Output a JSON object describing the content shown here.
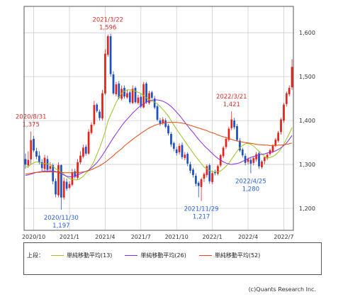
{
  "chart_data": {
    "type": "candlestick",
    "ylim": [
      1150,
      1660
    ],
    "y_ticks": [
      1200,
      1300,
      1400,
      1500,
      1600
    ],
    "y_tick_labels": [
      "1,200",
      "1,300",
      "1,400",
      "1,500",
      "1,600"
    ],
    "x_ticks": [
      {
        "label": "2020/10",
        "week": 3
      },
      {
        "label": "2021/1",
        "week": 16
      },
      {
        "label": "2021/4",
        "week": 29
      },
      {
        "label": "2021/7",
        "week": 42
      },
      {
        "label": "2021/10",
        "week": 55
      },
      {
        "label": "2022/1",
        "week": 68
      },
      {
        "label": "2022/4",
        "week": 81
      },
      {
        "label": "2022/7",
        "week": 94
      }
    ],
    "candles_close": [
      1300,
      1310,
      1355,
      1332,
      1318,
      1305,
      1292,
      1315,
      1288,
      1296,
      1262,
      1232,
      1298,
      1225,
      1262,
      1245,
      1255,
      1282,
      1272,
      1305,
      1320,
      1338,
      1325,
      1374,
      1390,
      1435,
      1422,
      1406,
      1462,
      1552,
      1592,
      1506,
      1462,
      1482,
      1452,
      1472,
      1455,
      1462,
      1442,
      1472,
      1442,
      1452,
      1432,
      1482,
      1442,
      1462,
      1452,
      1430,
      1402,
      1392,
      1402,
      1386,
      1371,
      1346,
      1336,
      1326,
      1342,
      1317,
      1322,
      1302,
      1286,
      1276,
      1256,
      1251,
      1266,
      1278,
      1296,
      1262,
      1280,
      1281,
      1296,
      1321,
      1338,
      1358,
      1381,
      1402,
      1385,
      1356,
      1332,
      1321,
      1304,
      1312,
      1302,
      1314,
      1323,
      1296,
      1306,
      1316,
      1322,
      1332,
      1342,
      1356,
      1372,
      1402,
      1436,
      1462,
      1474,
      1522
    ],
    "candles_open": [
      1312,
      1298,
      1312,
      1358,
      1330,
      1320,
      1305,
      1290,
      1312,
      1290,
      1298,
      1262,
      1230,
      1298,
      1225,
      1260,
      1247,
      1254,
      1284,
      1270,
      1305,
      1318,
      1340,
      1325,
      1372,
      1392,
      1436,
      1420,
      1405,
      1462,
      1550,
      1592,
      1505,
      1460,
      1484,
      1450,
      1474,
      1453,
      1464,
      1440,
      1474,
      1440,
      1454,
      1430,
      1484,
      1440,
      1464,
      1450,
      1432,
      1400,
      1394,
      1400,
      1388,
      1369,
      1348,
      1334,
      1328,
      1344,
      1315,
      1324,
      1300,
      1288,
      1274,
      1258,
      1249,
      1268,
      1276,
      1298,
      1260,
      1282,
      1279,
      1298,
      1319,
      1340,
      1356,
      1383,
      1400,
      1387,
      1354,
      1334,
      1319,
      1306,
      1310,
      1304,
      1312,
      1325,
      1294,
      1308,
      1314,
      1324,
      1330,
      1344,
      1354,
      1374,
      1400,
      1438,
      1460,
      1476
    ],
    "candles_high": [
      1325,
      1330,
      1375,
      1365,
      1338,
      1330,
      1312,
      1322,
      1320,
      1305,
      1302,
      1268,
      1305,
      1300,
      1270,
      1268,
      1262,
      1290,
      1290,
      1312,
      1330,
      1345,
      1345,
      1380,
      1396,
      1445,
      1440,
      1425,
      1470,
      1562,
      1596,
      1598,
      1512,
      1488,
      1490,
      1480,
      1480,
      1470,
      1468,
      1480,
      1478,
      1458,
      1460,
      1488,
      1488,
      1468,
      1468,
      1456,
      1436,
      1406,
      1408,
      1405,
      1392,
      1374,
      1352,
      1340,
      1348,
      1350,
      1328,
      1328,
      1306,
      1292,
      1280,
      1262,
      1270,
      1282,
      1300,
      1302,
      1286,
      1288,
      1300,
      1324,
      1342,
      1363,
      1386,
      1421,
      1406,
      1392,
      1360,
      1338,
      1325,
      1316,
      1315,
      1318,
      1328,
      1330,
      1310,
      1318,
      1326,
      1336,
      1346,
      1360,
      1376,
      1406,
      1440,
      1466,
      1480,
      1540
    ],
    "candles_low": [
      1290,
      1292,
      1300,
      1328,
      1312,
      1300,
      1285,
      1285,
      1282,
      1285,
      1255,
      1225,
      1225,
      1197,
      1220,
      1240,
      1243,
      1250,
      1268,
      1265,
      1300,
      1314,
      1320,
      1322,
      1368,
      1388,
      1418,
      1400,
      1400,
      1458,
      1545,
      1500,
      1458,
      1455,
      1448,
      1446,
      1450,
      1450,
      1438,
      1438,
      1438,
      1436,
      1428,
      1428,
      1438,
      1436,
      1448,
      1426,
      1398,
      1388,
      1390,
      1382,
      1366,
      1340,
      1330,
      1320,
      1322,
      1312,
      1310,
      1296,
      1280,
      1270,
      1250,
      1225,
      1217,
      1260,
      1270,
      1256,
      1255,
      1275,
      1275,
      1294,
      1315,
      1335,
      1352,
      1378,
      1380,
      1352,
      1328,
      1316,
      1298,
      1300,
      1280,
      1298,
      1306,
      1290,
      1290,
      1300,
      1310,
      1320,
      1326,
      1340,
      1350,
      1368,
      1395,
      1432,
      1455,
      1470
    ],
    "sma13": [
      1295,
      1295,
      1300,
      1304,
      1306,
      1305,
      1302,
      1302,
      1301,
      1300,
      1296,
      1290,
      1287,
      1282,
      1278,
      1272,
      1268,
      1266,
      1265,
      1265,
      1268,
      1273,
      1280,
      1286,
      1296,
      1308,
      1323,
      1338,
      1355,
      1375,
      1398,
      1413,
      1427,
      1441,
      1453,
      1462,
      1467,
      1470,
      1470,
      1469,
      1467,
      1464,
      1462,
      1457,
      1452,
      1448,
      1444,
      1442,
      1438,
      1432,
      1425,
      1418,
      1410,
      1400,
      1390,
      1380,
      1371,
      1362,
      1353,
      1344,
      1335,
      1326,
      1318,
      1310,
      1302,
      1294,
      1290,
      1286,
      1284,
      1283,
      1283,
      1285,
      1290,
      1296,
      1303,
      1312,
      1321,
      1330,
      1338,
      1343,
      1347,
      1348,
      1346,
      1342,
      1336,
      1330,
      1324,
      1318,
      1315,
      1316,
      1318,
      1322,
      1328,
      1336,
      1346,
      1358,
      1370,
      1384
    ],
    "sma26": [
      1275,
      1276,
      1278,
      1280,
      1282,
      1283,
      1284,
      1285,
      1285,
      1285,
      1285,
      1284,
      1282,
      1279,
      1276,
      1273,
      1272,
      1272,
      1273,
      1276,
      1279,
      1282,
      1284,
      1287,
      1292,
      1298,
      1304,
      1312,
      1321,
      1331,
      1341,
      1351,
      1361,
      1370,
      1379,
      1388,
      1396,
      1403,
      1410,
      1417,
      1423,
      1429,
      1434,
      1438,
      1442,
      1444,
      1446,
      1447,
      1447,
      1446,
      1444,
      1441,
      1437,
      1432,
      1426,
      1419,
      1412,
      1404,
      1396,
      1388,
      1380,
      1373,
      1365,
      1357,
      1350,
      1343,
      1337,
      1331,
      1325,
      1319,
      1314,
      1310,
      1306,
      1303,
      1301,
      1300,
      1301,
      1302,
      1304,
      1307,
      1310,
      1313,
      1316,
      1318,
      1320,
      1322,
      1323,
      1324,
      1326,
      1327,
      1329,
      1331,
      1334,
      1338,
      1343,
      1349,
      1357,
      1366
    ],
    "sma52": [
      1278,
      1279,
      1280,
      1281,
      1282,
      1282,
      1283,
      1283,
      1283,
      1283,
      1283,
      1283,
      1282,
      1282,
      1281,
      1281,
      1281,
      1281,
      1281,
      1282,
      1282,
      1283,
      1284,
      1286,
      1288,
      1291,
      1294,
      1297,
      1301,
      1305,
      1310,
      1315,
      1320,
      1326,
      1331,
      1336,
      1342,
      1347,
      1352,
      1357,
      1362,
      1366,
      1371,
      1375,
      1379,
      1383,
      1386,
      1389,
      1391,
      1393,
      1394,
      1395,
      1396,
      1396,
      1396,
      1396,
      1395,
      1394,
      1393,
      1391,
      1389,
      1387,
      1385,
      1383,
      1381,
      1379,
      1377,
      1374,
      1372,
      1370,
      1367,
      1365,
      1363,
      1361,
      1359,
      1357,
      1355,
      1354,
      1352,
      1351,
      1350,
      1349,
      1348,
      1347,
      1346,
      1345,
      1345,
      1344,
      1344,
      1343,
      1343,
      1343,
      1344,
      1344,
      1345,
      1346,
      1347,
      1349
    ],
    "annotations": [
      {
        "date": "2020/8/31",
        "value": "1,375",
        "week": 2,
        "price": 1375,
        "color": "#d9302c",
        "side": "high"
      },
      {
        "date": "2021/3/22",
        "value": "1,596",
        "week": 30,
        "price": 1596,
        "color": "#d9302c",
        "side": "high"
      },
      {
        "date": "2022/3/21",
        "value": "1,421",
        "week": 75,
        "price": 1421,
        "color": "#d9302c",
        "side": "high"
      },
      {
        "date": "2020/11/30",
        "value": "1,197",
        "week": 13,
        "price": 1197,
        "color": "#2a63d6",
        "side": "low"
      },
      {
        "date": "2021/11/29",
        "value": "1,217",
        "week": 64,
        "price": 1217,
        "color": "#2a63d6",
        "side": "low"
      },
      {
        "date": "2022/4/25",
        "value": "1,280",
        "week": 82,
        "price": 1280,
        "color": "#2a63d6",
        "side": "low"
      }
    ]
  },
  "colors": {
    "up": "#e2231a",
    "down": "#1d4fc4",
    "sma13": "#9ac31c",
    "sma26": "#8a2be2",
    "sma52": "#e8480e",
    "grid": "#cfcfcf"
  },
  "legend": {
    "prefix": "上段：",
    "items": [
      {
        "label": "単純移動平均(13)"
      },
      {
        "label": "単純移動平均(26)"
      },
      {
        "label": "単純移動平均(52)"
      }
    ]
  },
  "copyright": "(c)Quants Research Inc."
}
